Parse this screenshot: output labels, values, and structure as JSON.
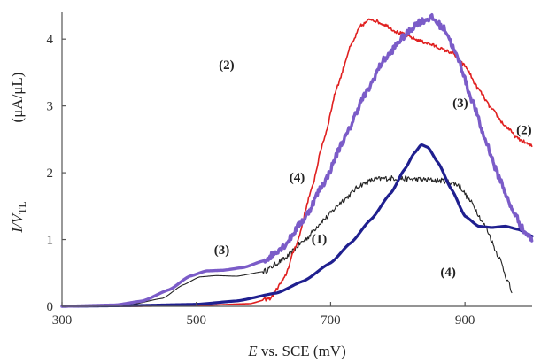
{
  "chart_data": {
    "type": "line",
    "xlabel_var": "E",
    "xlabel_rest": " vs. SCE (mV)",
    "ylabel_main": "I/V",
    "ylabel_sub": "TL",
    "ylabel_units": "(μA/μL)",
    "xlim": [
      300,
      1000
    ],
    "ylim": [
      0,
      4.4
    ],
    "xticks": [
      "300",
      "500",
      "700",
      "900"
    ],
    "xtick_values": [
      300,
      500,
      700,
      900
    ],
    "yticks": [
      "0",
      "1",
      "2",
      "3",
      "4"
    ],
    "ytick_values": [
      0,
      1,
      2,
      3,
      4
    ],
    "series": [
      {
        "name": "(1)",
        "color": "#1f1f8f",
        "width": 3.2,
        "noise": 0,
        "points": [
          [
            300,
            0
          ],
          [
            400,
            0.01
          ],
          [
            500,
            0.03
          ],
          [
            560,
            0.08
          ],
          [
            620,
            0.2
          ],
          [
            660,
            0.38
          ],
          [
            700,
            0.65
          ],
          [
            730,
            0.95
          ],
          [
            760,
            1.3
          ],
          [
            790,
            1.7
          ],
          [
            810,
            2.05
          ],
          [
            825,
            2.3
          ],
          [
            835,
            2.42
          ],
          [
            845,
            2.38
          ],
          [
            860,
            2.15
          ],
          [
            880,
            1.75
          ],
          [
            900,
            1.35
          ],
          [
            920,
            1.2
          ],
          [
            940,
            1.18
          ],
          [
            960,
            1.2
          ],
          [
            980,
            1.15
          ],
          [
            1000,
            1.05
          ]
        ]
      },
      {
        "name": "(2)",
        "color": "#e02020",
        "width": 1.6,
        "noise": 0.025,
        "points": [
          [
            300,
            0
          ],
          [
            400,
            0
          ],
          [
            500,
            0.01
          ],
          [
            580,
            0.04
          ],
          [
            610,
            0.12
          ],
          [
            630,
            0.4
          ],
          [
            650,
            0.95
          ],
          [
            670,
            1.7
          ],
          [
            690,
            2.5
          ],
          [
            710,
            3.3
          ],
          [
            730,
            3.9
          ],
          [
            745,
            4.2
          ],
          [
            760,
            4.3
          ],
          [
            780,
            4.22
          ],
          [
            800,
            4.1
          ],
          [
            840,
            3.95
          ],
          [
            880,
            3.8
          ],
          [
            900,
            3.6
          ],
          [
            920,
            3.25
          ],
          [
            940,
            2.95
          ],
          [
            960,
            2.7
          ],
          [
            980,
            2.5
          ],
          [
            1000,
            2.4
          ]
        ]
      },
      {
        "name": "(3)",
        "color": "#7b5cc8",
        "width": 3.4,
        "noise": 0.05,
        "points": [
          [
            300,
            0
          ],
          [
            380,
            0.02
          ],
          [
            420,
            0.08
          ],
          [
            460,
            0.25
          ],
          [
            490,
            0.45
          ],
          [
            515,
            0.53
          ],
          [
            540,
            0.54
          ],
          [
            570,
            0.58
          ],
          [
            600,
            0.68
          ],
          [
            630,
            0.9
          ],
          [
            660,
            1.3
          ],
          [
            690,
            1.85
          ],
          [
            720,
            2.5
          ],
          [
            750,
            3.15
          ],
          [
            780,
            3.7
          ],
          [
            810,
            4.05
          ],
          [
            830,
            4.25
          ],
          [
            850,
            4.32
          ],
          [
            870,
            4.15
          ],
          [
            890,
            3.7
          ],
          [
            910,
            3.1
          ],
          [
            930,
            2.5
          ],
          [
            950,
            1.95
          ],
          [
            970,
            1.45
          ],
          [
            990,
            1.1
          ],
          [
            1000,
            1.0
          ]
        ]
      },
      {
        "name": "(4)",
        "color": "#222222",
        "width": 1.1,
        "noise": 0.04,
        "points": [
          [
            300,
            0
          ],
          [
            400,
            0.02
          ],
          [
            450,
            0.12
          ],
          [
            480,
            0.32
          ],
          [
            505,
            0.44
          ],
          [
            530,
            0.46
          ],
          [
            560,
            0.45
          ],
          [
            600,
            0.52
          ],
          [
            630,
            0.7
          ],
          [
            660,
            0.98
          ],
          [
            690,
            1.3
          ],
          [
            720,
            1.6
          ],
          [
            745,
            1.82
          ],
          [
            765,
            1.9
          ],
          [
            790,
            1.92
          ],
          [
            830,
            1.9
          ],
          [
            870,
            1.88
          ],
          [
            890,
            1.82
          ],
          [
            910,
            1.55
          ],
          [
            930,
            1.2
          ],
          [
            950,
            0.75
          ],
          [
            965,
            0.35
          ],
          [
            970,
            0.2
          ]
        ]
      }
    ],
    "labels": [
      {
        "text": "(1)",
        "x": 683,
        "y": 0.95
      },
      {
        "text": "(2)",
        "x": 545,
        "y": 3.55
      },
      {
        "text": "(2)",
        "x": 988,
        "y": 2.58
      },
      {
        "text": "(3)",
        "x": 538,
        "y": 0.78
      },
      {
        "text": "(3)",
        "x": 893,
        "y": 2.98
      },
      {
        "text": "(4)",
        "x": 650,
        "y": 1.87
      },
      {
        "text": "(4)",
        "x": 875,
        "y": 0.45
      }
    ]
  }
}
